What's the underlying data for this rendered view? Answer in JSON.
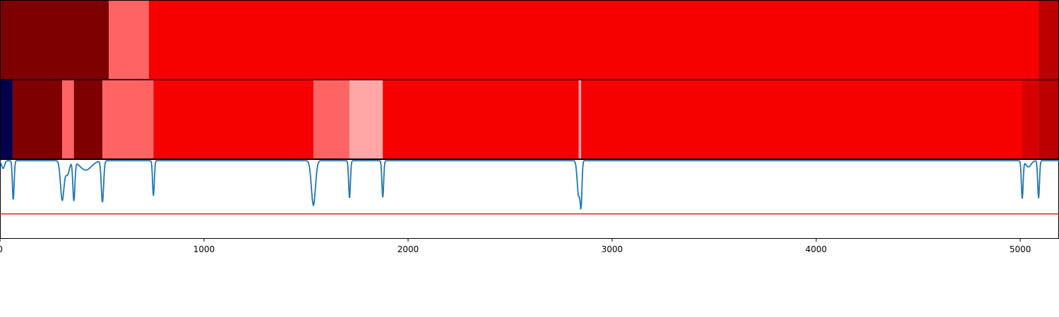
{
  "chart_data": [
    {
      "type": "heatmap",
      "xlim": [
        0,
        5190
      ],
      "segments": [
        {
          "start": 0,
          "end": 533,
          "color": "#7e0000"
        },
        {
          "start": 533,
          "end": 730,
          "color": "#ff6464"
        },
        {
          "start": 730,
          "end": 5090,
          "color": "#f60000"
        },
        {
          "start": 5090,
          "end": 5190,
          "color": "#bc0000"
        }
      ]
    },
    {
      "type": "heatmap",
      "xlim": [
        0,
        5190
      ],
      "segments": [
        {
          "start": 0,
          "end": 62,
          "color": "#00004c"
        },
        {
          "start": 62,
          "end": 305,
          "color": "#7e0000"
        },
        {
          "start": 305,
          "end": 362,
          "color": "#ff6464"
        },
        {
          "start": 362,
          "end": 502,
          "color": "#7e0000"
        },
        {
          "start": 502,
          "end": 752,
          "color": "#ff6464"
        },
        {
          "start": 752,
          "end": 1536,
          "color": "#f60000"
        },
        {
          "start": 1536,
          "end": 1713,
          "color": "#ff6464"
        },
        {
          "start": 1713,
          "end": 1876,
          "color": "#ffa6a6"
        },
        {
          "start": 1876,
          "end": 2836,
          "color": "#f60000"
        },
        {
          "start": 2836,
          "end": 2848,
          "color": "#ffa6a6"
        },
        {
          "start": 2848,
          "end": 5010,
          "color": "#f60000"
        },
        {
          "start": 5010,
          "end": 5090,
          "color": "#d60000"
        },
        {
          "start": 5090,
          "end": 5190,
          "color": "#bc0000"
        }
      ]
    },
    {
      "type": "line",
      "xlim": [
        0,
        5190
      ],
      "ylim": [
        0,
        1
      ],
      "x_ticks": [
        "0",
        "1000",
        "2000",
        "3000",
        "4000",
        "5000"
      ],
      "x_tick_values": [
        0,
        1000,
        2000,
        3000,
        4000,
        5000
      ],
      "threshold": 0.31,
      "threshold_color": "#e41a1c",
      "series_color": "#1f77b4",
      "baseline": 0.99,
      "dips": [
        {
          "center": 15,
          "depth": 0.1,
          "width": 10
        },
        {
          "center": 65,
          "depth": 0.5,
          "width": 6
        },
        {
          "center": 305,
          "depth": 0.5,
          "width": 12
        },
        {
          "center": 330,
          "depth": 0.18,
          "width": 14
        },
        {
          "center": 362,
          "depth": 0.5,
          "width": 7
        },
        {
          "center": 420,
          "depth": 0.12,
          "width": 40
        },
        {
          "center": 502,
          "depth": 0.53,
          "width": 8
        },
        {
          "center": 752,
          "depth": 0.45,
          "width": 6
        },
        {
          "center": 1536,
          "depth": 0.57,
          "width": 14
        },
        {
          "center": 1713,
          "depth": 0.48,
          "width": 6
        },
        {
          "center": 1876,
          "depth": 0.47,
          "width": 6
        },
        {
          "center": 2836,
          "depth": 0.45,
          "width": 10
        },
        {
          "center": 2848,
          "depth": 0.5,
          "width": 6
        },
        {
          "center": 5010,
          "depth": 0.48,
          "width": 6
        },
        {
          "center": 5040,
          "depth": 0.08,
          "width": 18
        },
        {
          "center": 5090,
          "depth": 0.48,
          "width": 6
        }
      ]
    }
  ]
}
